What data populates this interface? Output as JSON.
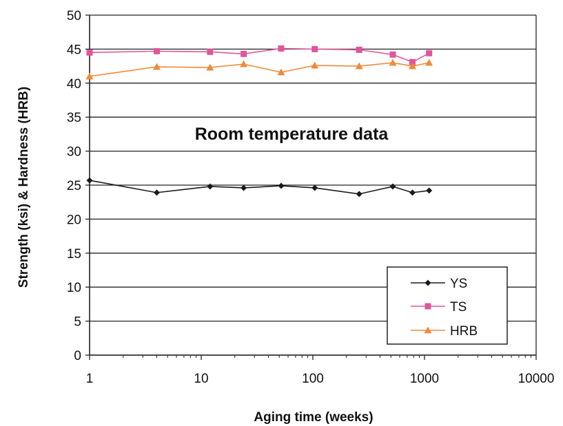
{
  "chart_data": {
    "type": "line",
    "xlabel": "Aging time (weeks)",
    "ylabel": "Strength (ksi) & Hardness (HRB)",
    "x_scale": "log",
    "xlim": [
      1,
      10000
    ],
    "ylim": [
      0,
      50
    ],
    "x_ticks": [
      "1",
      "10",
      "100",
      "1000",
      "10000"
    ],
    "y_ticks": [
      "0",
      "5",
      "10",
      "15",
      "20",
      "25",
      "30",
      "35",
      "40",
      "45",
      "50"
    ],
    "grid": "horizontal",
    "legend_position": "bottom-right",
    "annotation": "Room temperature data",
    "series": [
      {
        "name": "YS",
        "color": "#1a1a1a",
        "marker": "diamond",
        "x": [
          1,
          4,
          12,
          24,
          52,
          104,
          260,
          520,
          780,
          1100
        ],
        "y": [
          25.7,
          23.9,
          24.8,
          24.6,
          24.9,
          24.6,
          23.7,
          24.8,
          23.9,
          24.2
        ]
      },
      {
        "name": "TS",
        "color": "#e0559b",
        "marker": "square",
        "x": [
          1,
          4,
          12,
          24,
          52,
          104,
          260,
          520,
          780,
          1100
        ],
        "y": [
          44.5,
          44.7,
          44.6,
          44.3,
          45.1,
          45.0,
          44.9,
          44.2,
          43.1,
          44.4
        ]
      },
      {
        "name": "HRB",
        "color": "#f08a3a",
        "marker": "triangle",
        "x": [
          1,
          4,
          12,
          24,
          52,
          104,
          260,
          520,
          780,
          1100
        ],
        "y": [
          41.0,
          42.4,
          42.3,
          42.8,
          41.6,
          42.6,
          42.5,
          43.0,
          42.5,
          43.0
        ]
      }
    ]
  }
}
